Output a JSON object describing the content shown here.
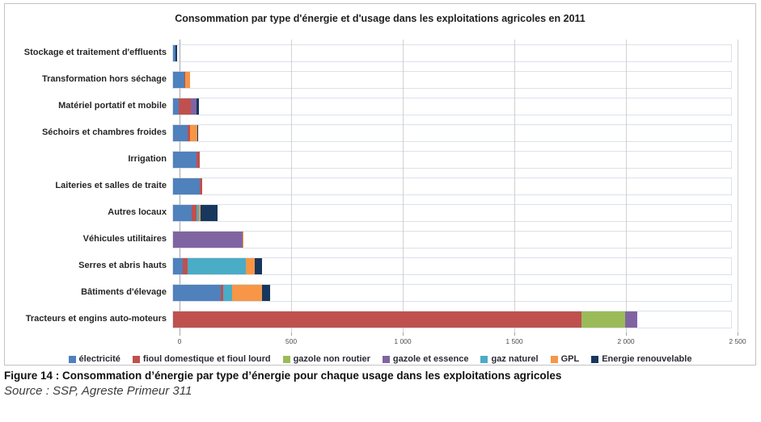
{
  "chart_data": {
    "type": "bar",
    "orientation": "horizontal",
    "stacked": true,
    "title": "Consommation par type d'énergie et d'usage dans les exploitations agricoles en 2011",
    "categories": [
      "Stockage et traitement d'effluents",
      "Transformation hors séchage",
      "Matériel portatif et mobile",
      "Séchoirs et chambres froides",
      "Irrigation",
      "Laiteries et salles de traite",
      "Autres locaux",
      "Véhicules utilitaires",
      "Serres et abris hauts",
      "Bâtiments d'élevage",
      "Tracteurs et engins auto-moteurs"
    ],
    "series": [
      {
        "name": "électricité",
        "color": "#4F81BD",
        "values": [
          12,
          50,
          25,
          65,
          105,
          118,
          85,
          0,
          45,
          215,
          0
        ]
      },
      {
        "name": "fioul domestique et fioul lourd",
        "color": "#C0504D",
        "values": [
          0,
          6,
          55,
          12,
          15,
          12,
          20,
          0,
          20,
          10,
          1830
        ]
      },
      {
        "name": "gazole non routier",
        "color": "#9BBB59",
        "values": [
          0,
          0,
          0,
          0,
          0,
          0,
          0,
          0,
          0,
          0,
          195
        ]
      },
      {
        "name": "gazole et essence",
        "color": "#8064A2",
        "values": [
          0,
          0,
          25,
          0,
          0,
          0,
          0,
          310,
          0,
          0,
          55
        ]
      },
      {
        "name": "gaz naturel",
        "color": "#4BACC6",
        "values": [
          0,
          0,
          0,
          0,
          0,
          0,
          10,
          0,
          260,
          40,
          0
        ]
      },
      {
        "name": "GPL",
        "color": "#F79646",
        "values": [
          0,
          20,
          0,
          30,
          0,
          0,
          10,
          5,
          40,
          135,
          0
        ]
      },
      {
        "name": "Energie renouvelable",
        "color": "#17375E",
        "values": [
          6,
          0,
          12,
          5,
          0,
          0,
          75,
          0,
          35,
          35,
          0
        ]
      }
    ],
    "xlim": [
      0,
      2500
    ],
    "x_ticks": [
      {
        "value": 0,
        "label": "0"
      },
      {
        "value": 500,
        "label": "500"
      },
      {
        "value": 1000,
        "label": "1 000"
      },
      {
        "value": 1500,
        "label": "1 500"
      },
      {
        "value": 2000,
        "label": "2 000"
      },
      {
        "value": 2500,
        "label": "2 500"
      }
    ],
    "grid": true,
    "legend_position": "bottom"
  },
  "caption": {
    "text": "Figure 14 : Consommation d’énergie par type d’énergie pour chaque usage dans les exploitations agricoles"
  },
  "source": {
    "text": "Source : SSP, Agreste Primeur 311"
  }
}
